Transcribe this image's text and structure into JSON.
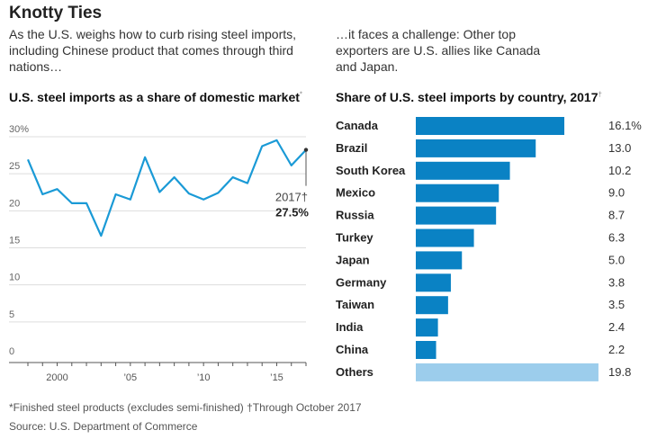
{
  "title": "Knotty Ties",
  "intro_left": "As the U.S. weighs how to curb rising steel imports, including Chinese product that comes through third nations…",
  "intro_right": "…it faces a challenge: Other top exporters are U.S. allies like Canada and Japan.",
  "footnote": "*Finished steel products (excludes semi-finished)   †Through October 2017",
  "source": "Source: U.S. Department of Commerce",
  "colors": {
    "line": "#1a9ad6",
    "bar": "#0a82c4",
    "others": "#9ccdec"
  },
  "chart_data": [
    {
      "type": "line",
      "title": "U.S. steel imports as a share of domestic market",
      "title_mark": "*",
      "x": [
        1998,
        1999,
        2000,
        2001,
        2002,
        2003,
        2004,
        2005,
        2006,
        2007,
        2008,
        2009,
        2010,
        2011,
        2012,
        2013,
        2014,
        2015,
        2016,
        2017
      ],
      "values": [
        26.2,
        21.5,
        22.2,
        20.3,
        20.3,
        15.9,
        21.5,
        20.8,
        26.5,
        21.8,
        23.8,
        21.6,
        20.8,
        21.7,
        23.8,
        23.0,
        28.0,
        28.8,
        25.4,
        27.5
      ],
      "ylim": [
        0,
        30
      ],
      "yticks": [
        {
          "v": 30,
          "label": "30%"
        },
        {
          "v": 25,
          "label": "25"
        },
        {
          "v": 20,
          "label": "20"
        },
        {
          "v": 15,
          "label": "15"
        },
        {
          "v": 10,
          "label": "10"
        },
        {
          "v": 5,
          "label": "5"
        },
        {
          "v": 0,
          "label": "0"
        }
      ],
      "xticks": [
        {
          "v": 2000,
          "label": "2000"
        },
        {
          "v": 2005,
          "label": "’05"
        },
        {
          "v": 2010,
          "label": "’10"
        },
        {
          "v": 2015,
          "label": "’15"
        }
      ],
      "annotation": {
        "year": "2017†",
        "value": "27.5%"
      }
    },
    {
      "type": "bar",
      "title": "Share of U.S. steel imports by country, 2017",
      "title_mark": "†",
      "categories": [
        "Canada",
        "Brazil",
        "South Korea",
        "Mexico",
        "Russia",
        "Turkey",
        "Japan",
        "Germany",
        "Taiwan",
        "India",
        "China",
        "Others"
      ],
      "values": [
        16.1,
        13.0,
        10.2,
        9.0,
        8.7,
        6.3,
        5.0,
        3.8,
        3.5,
        2.4,
        2.2,
        19.8
      ],
      "labels": [
        "16.1%",
        "13.0",
        "10.2",
        "9.0",
        "8.7",
        "6.3",
        "5.0",
        "3.8",
        "3.5",
        "2.4",
        "2.2",
        "19.8"
      ]
    }
  ]
}
